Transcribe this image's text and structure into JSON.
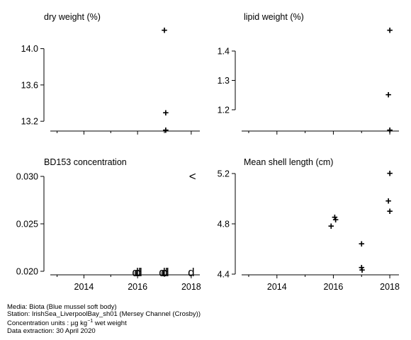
{
  "caption": {
    "media": "Media: Biota (Blue mussel soft body)",
    "station": "Station: IrishSea_LiverpoolBay_sh01 (Mersey Channel (Crosby))",
    "units_prefix": "Concentration units : µg kg",
    "units_exp": "−1",
    "units_suffix": " wet weight",
    "extraction": "Data extraction: 30 April 2020"
  },
  "chart_data": [
    {
      "type": "scatter",
      "title": "dry weight (%)",
      "xlim": [
        2012.8,
        2018.4
      ],
      "ylim": [
        13.1,
        14.2
      ],
      "x_ticks": [
        2014,
        2016,
        2018
      ],
      "x_tick_labels": [],
      "y_ticks": [
        13.2,
        13.6,
        14.0
      ],
      "y_tick_labels": [
        "13.2",
        "13.6",
        "14.0"
      ],
      "points": [
        {
          "x": 2017.0,
          "y": 14.2,
          "marker": "+"
        },
        {
          "x": 2017.05,
          "y": 13.29,
          "marker": "+"
        },
        {
          "x": 2017.05,
          "y": 13.1,
          "marker": "+"
        }
      ]
    },
    {
      "type": "scatter",
      "title": "lipid weight (%)",
      "xlim": [
        2012.8,
        2018.4
      ],
      "ylim": [
        1.13,
        1.47
      ],
      "x_ticks": [
        2014,
        2016,
        2018
      ],
      "x_tick_labels": [],
      "y_ticks": [
        1.2,
        1.3,
        1.4
      ],
      "y_tick_labels": [
        "1.2",
        "1.3",
        "1.4"
      ],
      "points": [
        {
          "x": 2018.0,
          "y": 1.47,
          "marker": "+"
        },
        {
          "x": 2017.95,
          "y": 1.25,
          "marker": "+"
        },
        {
          "x": 2018.0,
          "y": 1.13,
          "marker": "+"
        }
      ]
    },
    {
      "type": "scatter",
      "title": "BD153 concentration",
      "xlim": [
        2012.8,
        2018.4
      ],
      "ylim": [
        0.0197,
        0.0303
      ],
      "x_ticks": [
        2014,
        2016,
        2018
      ],
      "x_tick_labels": [
        "2014",
        "2016",
        "2018"
      ],
      "y_ticks": [
        0.02,
        0.025,
        0.03
      ],
      "y_tick_labels": [
        "0.020",
        "0.025",
        "0.030"
      ],
      "points": [
        {
          "x": 2015.92,
          "y": 0.0199,
          "marker": "d"
        },
        {
          "x": 2016.0,
          "y": 0.0199,
          "marker": "d"
        },
        {
          "x": 2016.05,
          "y": 0.0199,
          "marker": "d"
        },
        {
          "x": 2016.92,
          "y": 0.0199,
          "marker": "d"
        },
        {
          "x": 2017.0,
          "y": 0.0199,
          "marker": "d"
        },
        {
          "x": 2017.05,
          "y": 0.0199,
          "marker": "d"
        },
        {
          "x": 2018.0,
          "y": 0.0199,
          "marker": "d"
        },
        {
          "x": 2018.05,
          "y": 0.03,
          "marker": "<"
        }
      ]
    },
    {
      "type": "scatter",
      "title": "Mean shell length (cm)",
      "xlim": [
        2012.8,
        2018.4
      ],
      "ylim": [
        4.4,
        5.2
      ],
      "x_ticks": [
        2014,
        2016,
        2018
      ],
      "x_tick_labels": [
        "2014",
        "2016",
        "2018"
      ],
      "y_ticks": [
        4.4,
        4.8,
        5.2
      ],
      "y_tick_labels": [
        "4.4",
        "4.8",
        "5.2"
      ],
      "points": [
        {
          "x": 2015.92,
          "y": 4.78,
          "marker": "+"
        },
        {
          "x": 2016.05,
          "y": 4.85,
          "marker": "+"
        },
        {
          "x": 2016.08,
          "y": 4.83,
          "marker": "+"
        },
        {
          "x": 2017.0,
          "y": 4.64,
          "marker": "+"
        },
        {
          "x": 2017.0,
          "y": 4.45,
          "marker": "+"
        },
        {
          "x": 2017.02,
          "y": 4.43,
          "marker": "+"
        },
        {
          "x": 2018.0,
          "y": 5.2,
          "marker": "+"
        },
        {
          "x": 2017.95,
          "y": 4.98,
          "marker": "+"
        },
        {
          "x": 2018.0,
          "y": 4.9,
          "marker": "+"
        }
      ]
    }
  ]
}
